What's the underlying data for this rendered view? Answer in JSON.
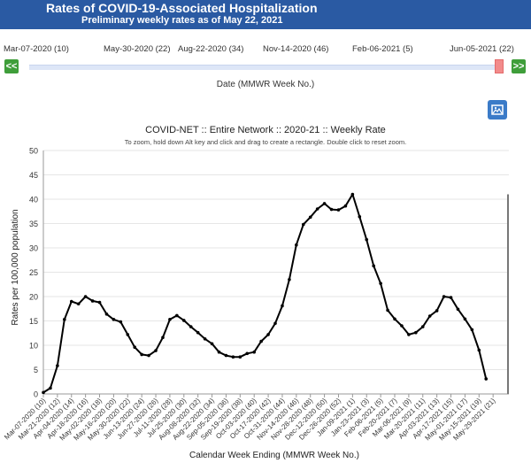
{
  "header": {
    "title": "Rates of COVID-19-Associated Hospitalization",
    "subtitle": "Preliminary weekly rates as of May 22, 2021"
  },
  "timeline": {
    "labels": [
      "Mar-07-2020 (10)",
      "May-30-2020 (22)",
      "Aug-22-2020 (34)",
      "Nov-14-2020 (46)",
      "Feb-06-2021 (5)",
      "Jun-05-2021 (22)"
    ],
    "prev_label": "<<",
    "next_label": ">>",
    "caption": "Date (MMWR Week No.)"
  },
  "icons": {
    "image_button": "image-icon"
  },
  "colors": {
    "header": "#2a5aa3",
    "nav": "#3f9e3a",
    "line": "#000000",
    "handle": "#f28b8b"
  },
  "chart_data": {
    "type": "line",
    "title": "COVID-NET :: Entire Network :: 2020-21 :: Weekly Rate",
    "hint": "To zoom, hold down Alt key and click and drag to create a rectangle. Double click to reset zoom.",
    "xlabel": "Calendar Week Ending (MMWR Week No.)",
    "ylabel": "Rates per 100,000 population",
    "ylim": [
      0,
      50
    ],
    "yticks": [
      0,
      5,
      10,
      15,
      20,
      25,
      30,
      35,
      40,
      45,
      50
    ],
    "grid": "horizontal",
    "x_tick_labels": [
      "Mar-07-2020 (10)",
      "Mar-21-2020 (12)",
      "Apr-04-2020 (14)",
      "Apr-18-2020 (16)",
      "May-02-2020 (18)",
      "May-16-2020 (20)",
      "May-30-2020 (22)",
      "Jun-13-2020 (24)",
      "Jun-27-2020 (26)",
      "Jul-11-2020 (28)",
      "Jul-25-2020 (30)",
      "Aug-08-2020 (32)",
      "Aug-22-2020 (34)",
      "Sep-05-2020 (36)",
      "Sep-19-2020 (38)",
      "Oct-03-2020 (40)",
      "Oct-17-2020 (42)",
      "Oct-31-2020 (44)",
      "Nov-14-2020 (46)",
      "Nov-28-2020 (48)",
      "Dec-12-2020 (50)",
      "Dec-26-2020 (52)",
      "Jan-09-2021 (1)",
      "Jan-23-2021 (3)",
      "Feb-06-2021 (5)",
      "Feb-20-2021 (7)",
      "Mar-06-2021 (9)",
      "Mar-20-2021 (11)",
      "Apr-03-2021 (13)",
      "Apr-17-2021 (15)",
      "May-01-2021 (17)",
      "May-15-2021 (19)",
      "May-29-2021 (21)"
    ],
    "series": [
      {
        "values": [
          0.3,
          1.2,
          5.8,
          15.3,
          19.0,
          18.5,
          20.0,
          19.1,
          18.8,
          16.4,
          15.3,
          14.8,
          12.2,
          9.6,
          8.1,
          7.9,
          8.9,
          11.6,
          15.3,
          16.1,
          15.1,
          13.8,
          12.6,
          11.3,
          10.3,
          8.6,
          7.9,
          7.6,
          7.6,
          8.3,
          8.6,
          10.8,
          12.2,
          14.5,
          18.1,
          23.5,
          30.6,
          34.8,
          36.3,
          38.0,
          39.1,
          37.9,
          37.8,
          38.6,
          41.0,
          36.4,
          31.7,
          26.3,
          22.7,
          17.2,
          15.4,
          14.0,
          12.2,
          12.6,
          13.8,
          16.0,
          17.1,
          20.0,
          19.8,
          17.4,
          15.4,
          13.2,
          9.0,
          3.1
        ]
      }
    ]
  }
}
